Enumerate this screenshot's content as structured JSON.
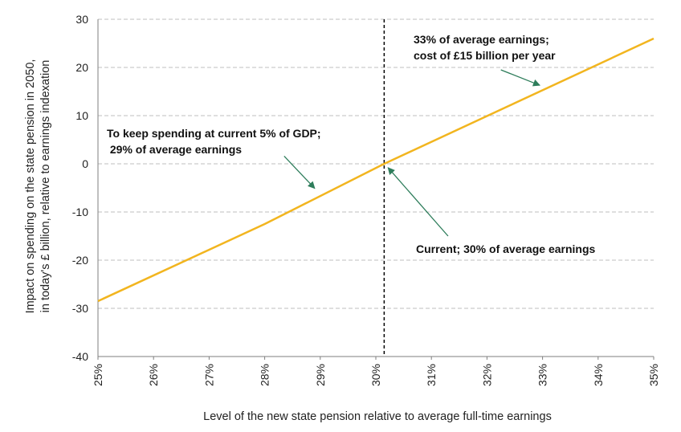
{
  "chart_data": {
    "type": "line",
    "title": "",
    "xlabel": "Level of the new state pension relative to average full-time earnings",
    "ylabel_lines": [
      "Impact on spending on the state pension in 2050,",
      "in today's £ billion, relative to earnings indexation"
    ],
    "x_ticks": [
      {
        "value": 25,
        "label": "25%"
      },
      {
        "value": 26,
        "label": "26%"
      },
      {
        "value": 27,
        "label": "27%"
      },
      {
        "value": 28,
        "label": "28%"
      },
      {
        "value": 29,
        "label": "29%"
      },
      {
        "value": 30,
        "label": "30%"
      },
      {
        "value": 31,
        "label": "31%"
      },
      {
        "value": 32,
        "label": "32%"
      },
      {
        "value": 33,
        "label": "33%"
      },
      {
        "value": 34,
        "label": "34%"
      },
      {
        "value": 35,
        "label": "35%"
      }
    ],
    "y_ticks": [
      {
        "value": 30,
        "label": "30"
      },
      {
        "value": 20,
        "label": "20"
      },
      {
        "value": 10,
        "label": "10"
      },
      {
        "value": 0,
        "label": "0"
      },
      {
        "value": -10,
        "label": "-10"
      },
      {
        "value": -20,
        "label": "-20"
      },
      {
        "value": -30,
        "label": "-30"
      },
      {
        "value": -40,
        "label": "-40"
      }
    ],
    "xlim": [
      25,
      35
    ],
    "ylim": [
      -40,
      30
    ],
    "grid": "horizontal dashed",
    "series": [
      {
        "name": "Impact on spending",
        "color": "#f2b51f",
        "x": [
          25,
          28,
          30.15,
          35
        ],
        "y": [
          -28.5,
          -12.5,
          0,
          26
        ]
      }
    ],
    "reference_line": {
      "x": 30.15,
      "style": "dashed",
      "color": "#000000"
    },
    "annotations": [
      {
        "lines": [
          "33% of average earnings;",
          "cost of £15 billion per year"
        ],
        "arrow_from": [
          32.25,
          19.5
        ],
        "arrow_to": [
          32.95,
          16.3
        ]
      },
      {
        "lines": [
          "To keep spending at current 5% of GDP;",
          " 29% of average earnings"
        ],
        "arrow_from": [
          28.35,
          1.6
        ],
        "arrow_to": [
          28.9,
          -5.1
        ]
      },
      {
        "lines": [
          "Current; 30% of average earnings"
        ],
        "arrow_from": [
          31.3,
          -15
        ],
        "arrow_to": [
          30.22,
          -0.8
        ]
      }
    ],
    "colors": {
      "line": "#f2b51f",
      "arrow": "#2e7d5b",
      "grid": "#bfbfbf",
      "axis": "#7f7f7f"
    }
  }
}
